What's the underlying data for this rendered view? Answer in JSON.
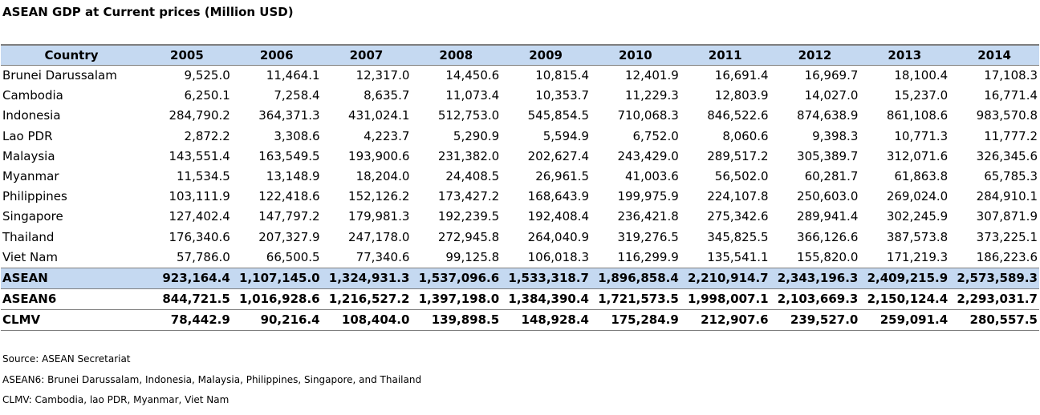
{
  "title": "ASEAN GDP at Current prices (Million USD)",
  "chart_data": {
    "type": "table",
    "title": "ASEAN GDP at Current prices (Million USD)",
    "columns": [
      "Country",
      "2005",
      "2006",
      "2007",
      "2008",
      "2009",
      "2010",
      "2011",
      "2012",
      "2013",
      "2014"
    ],
    "rows": [
      {
        "name": "Brunei Darussalam",
        "values": [
          "9,525.0",
          "11,464.1",
          "12,317.0",
          "14,450.6",
          "10,815.4",
          "12,401.9",
          "16,691.4",
          "16,969.7",
          "18,100.4",
          "17,108.3"
        ]
      },
      {
        "name": "Cambodia",
        "values": [
          "6,250.1",
          "7,258.4",
          "8,635.7",
          "11,073.4",
          "10,353.7",
          "11,229.3",
          "12,803.9",
          "14,027.0",
          "15,237.0",
          "16,771.4"
        ]
      },
      {
        "name": "Indonesia",
        "values": [
          "284,790.2",
          "364,371.3",
          "431,024.1",
          "512,753.0",
          "545,854.5",
          "710,068.3",
          "846,522.6",
          "874,638.9",
          "861,108.6",
          "983,570.8"
        ]
      },
      {
        "name": "Lao PDR",
        "values": [
          "2,872.2",
          "3,308.6",
          "4,223.7",
          "5,290.9",
          "5,594.9",
          "6,752.0",
          "8,060.6",
          "9,398.3",
          "10,771.3",
          "11,777.2"
        ]
      },
      {
        "name": "Malaysia",
        "values": [
          "143,551.4",
          "163,549.5",
          "193,900.6",
          "231,382.0",
          "202,627.4",
          "243,429.0",
          "289,517.2",
          "305,389.7",
          "312,071.6",
          "326,345.6"
        ]
      },
      {
        "name": "Myanmar",
        "values": [
          "11,534.5",
          "13,148.9",
          "18,204.0",
          "24,408.5",
          "26,961.5",
          "41,003.6",
          "56,502.0",
          "60,281.7",
          "61,863.8",
          "65,785.3"
        ]
      },
      {
        "name": "Philippines",
        "values": [
          "103,111.9",
          "122,418.6",
          "152,126.2",
          "173,427.2",
          "168,643.9",
          "199,975.9",
          "224,107.8",
          "250,603.0",
          "269,024.0",
          "284,910.1"
        ]
      },
      {
        "name": "Singapore",
        "values": [
          "127,402.4",
          "147,797.2",
          "179,981.3",
          "192,239.5",
          "192,408.4",
          "236,421.8",
          "275,342.6",
          "289,941.4",
          "302,245.9",
          "307,871.9"
        ]
      },
      {
        "name": "Thailand",
        "values": [
          "176,340.6",
          "207,327.9",
          "247,178.0",
          "272,945.8",
          "264,040.9",
          "319,276.5",
          "345,825.5",
          "366,126.6",
          "387,573.8",
          "373,225.1"
        ]
      },
      {
        "name": "Viet Nam",
        "values": [
          "57,786.0",
          "66,500.5",
          "77,340.6",
          "99,125.8",
          "106,018.3",
          "116,299.9",
          "135,541.1",
          "155,820.0",
          "171,219.3",
          "186,223.6"
        ]
      }
    ],
    "totals": [
      {
        "name": "ASEAN",
        "values": [
          "923,164.4",
          "1,107,145.0",
          "1,324,931.3",
          "1,537,096.6",
          "1,533,318.7",
          "1,896,858.4",
          "2,210,914.7",
          "2,343,196.3",
          "2,409,215.9",
          "2,573,589.3"
        ]
      },
      {
        "name": "ASEAN6",
        "values": [
          "844,721.5",
          "1,016,928.6",
          "1,216,527.2",
          "1,397,198.0",
          "1,384,390.4",
          "1,721,573.5",
          "1,998,007.1",
          "2,103,669.3",
          "2,150,124.4",
          "2,293,031.7"
        ]
      },
      {
        "name": "CLMV",
        "values": [
          "78,442.9",
          "90,216.4",
          "108,404.0",
          "139,898.5",
          "148,928.4",
          "175,284.9",
          "212,907.6",
          "239,527.0",
          "259,091.4",
          "280,557.5"
        ]
      }
    ]
  },
  "notes": [
    "Source: ASEAN Secretariat",
    "ASEAN6: Brunei Darussalam, Indonesia, Malaysia, Philippines, Singapore, and Thailand",
    "CLMV: Cambodia, lao PDR, Myanmar, Viet Nam"
  ],
  "colors": {
    "header_fill": "#c5d9f1",
    "rule": "#7f7f7f"
  }
}
